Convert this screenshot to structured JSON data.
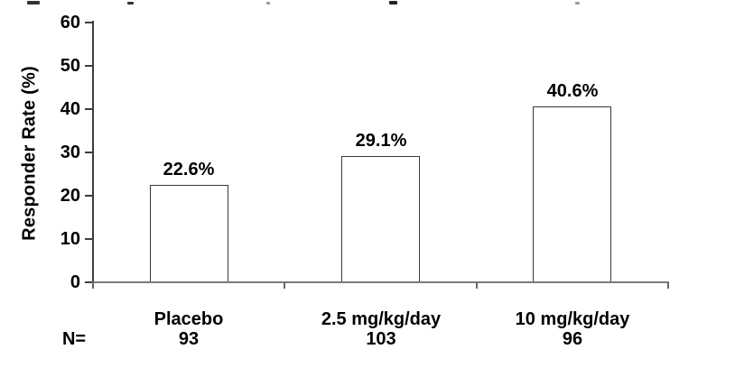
{
  "chart_data": {
    "type": "bar",
    "title": "",
    "ylabel": "Responder Rate (%)",
    "xlabel": "",
    "ylim": [
      0,
      60
    ],
    "yticks": [
      0,
      10,
      20,
      30,
      40,
      50,
      60
    ],
    "categories": [
      "Placebo",
      "2.5 mg/kg/day",
      "10 mg/kg/day"
    ],
    "values": [
      22.6,
      29.1,
      40.6
    ],
    "value_labels": [
      "22.6%",
      "29.1%",
      "40.6%"
    ],
    "n_row": {
      "label": "N=",
      "values": [
        "93",
        "103",
        "96"
      ]
    },
    "grid": false,
    "legend": "none",
    "colors": {
      "background": "#ffffff",
      "text": "#000000",
      "bar_fill": "#ffffff",
      "bar_border": "#3a3a3a",
      "axis": "#3d3d3d",
      "baseline": "#7a7a7a",
      "xtick": "#666666"
    }
  }
}
